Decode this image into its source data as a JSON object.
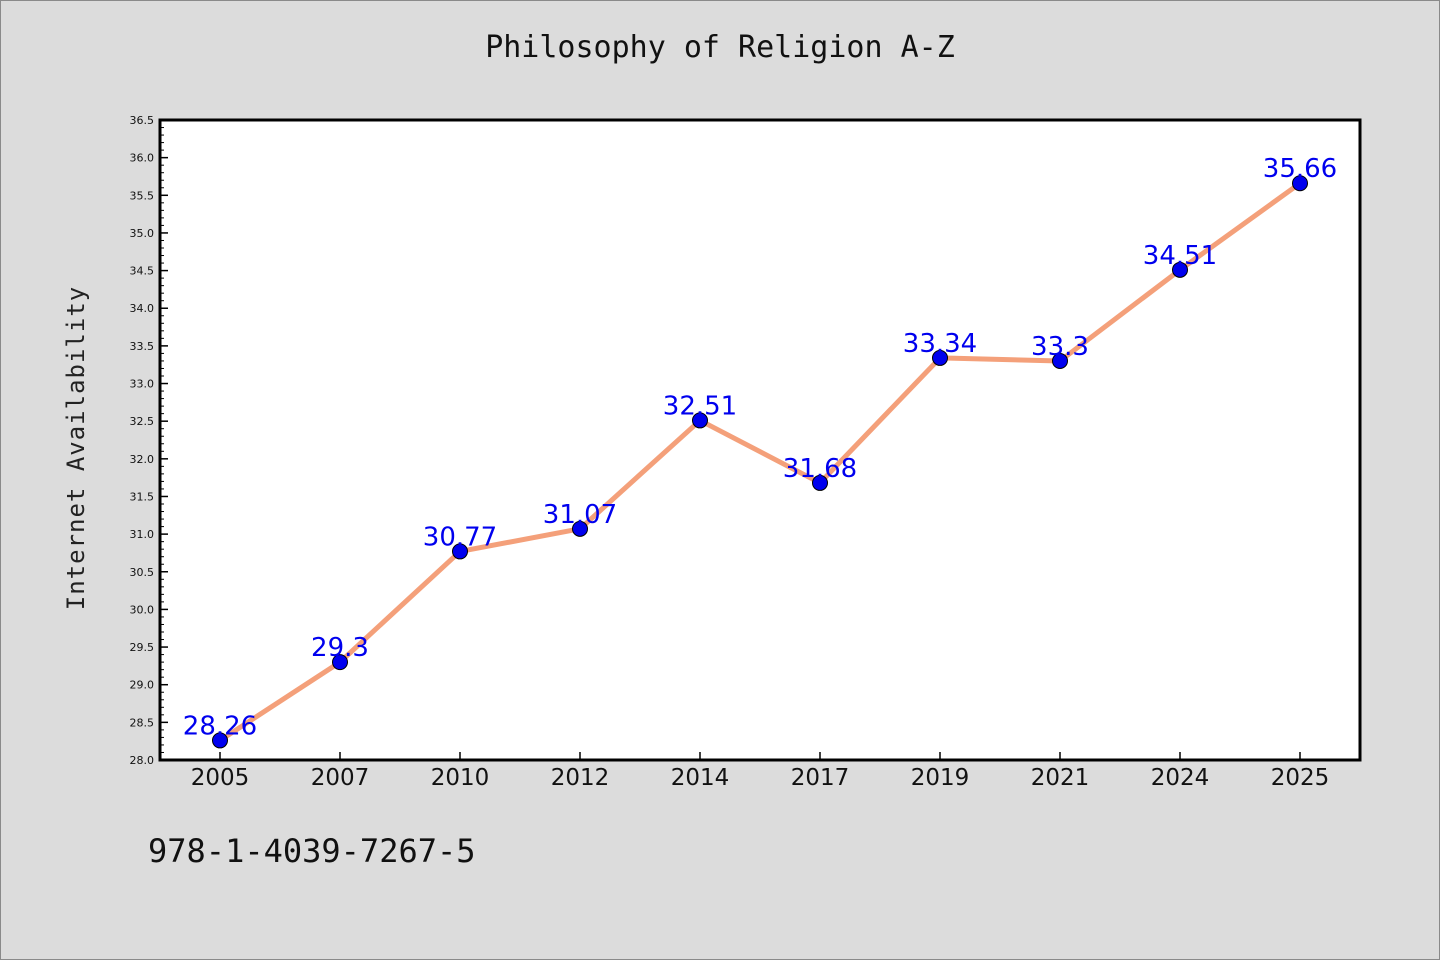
{
  "chart_data": {
    "type": "line",
    "title": "Philosophy of Religion A-Z",
    "xlabel": "",
    "ylabel": "Internet Availability",
    "categories": [
      "2005",
      "2007",
      "2010",
      "2012",
      "2014",
      "2017",
      "2019",
      "2021",
      "2024",
      "2025"
    ],
    "series": [
      {
        "values": [
          28.26,
          29.3,
          30.77,
          31.07,
          32.51,
          31.68,
          33.34,
          33.3,
          34.51,
          35.66
        ],
        "line_color": "#f4a07a",
        "marker_color": "#0000ee"
      }
    ],
    "data_labels": [
      "28.26",
      "29.3",
      "30.77",
      "31.07",
      "32.51",
      "31.68",
      "33.34",
      "33.3",
      "34.51",
      "35.66"
    ],
    "label_color": "#0000ee",
    "ylim": [
      28.0,
      36.5
    ],
    "yticks": [
      "28.0",
      "28.5",
      "29.0",
      "29.5",
      "30.0",
      "30.5",
      "31.0",
      "31.5",
      "32.0",
      "32.5",
      "33.0",
      "33.5",
      "34.0",
      "34.5",
      "35.0",
      "35.5",
      "36.0",
      "36.5"
    ],
    "grid": false,
    "legend": "none"
  },
  "footer": {
    "isbn": "978-1-4039-7267-5"
  }
}
